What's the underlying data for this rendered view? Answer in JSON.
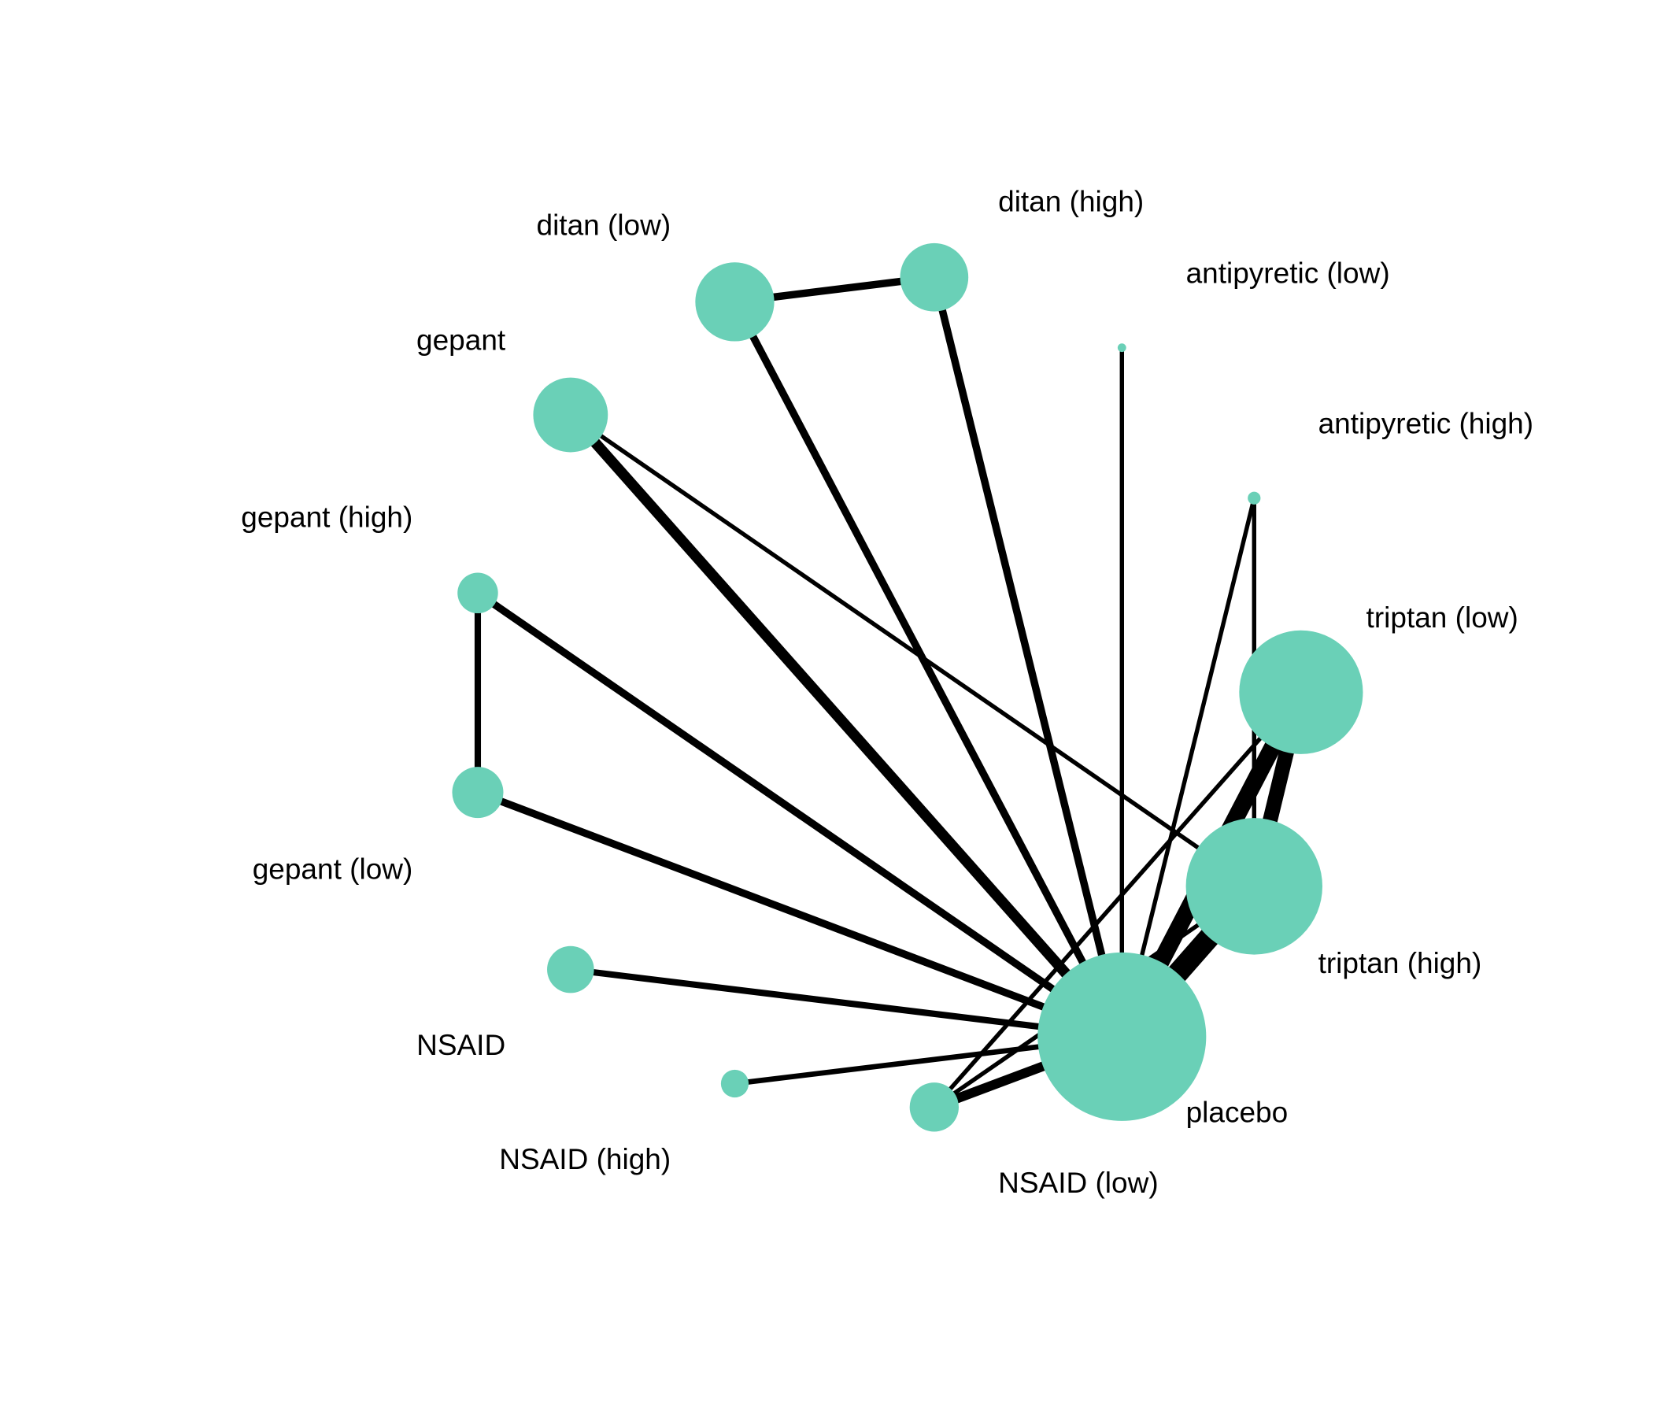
{
  "node_color": "#6ad0b7",
  "edge_color": "#000000",
  "nodes": [
    {
      "id": "placebo",
      "label": "placebo"
    },
    {
      "id": "triptan_high",
      "label": "triptan (high)"
    },
    {
      "id": "triptan_low",
      "label": "triptan (low)"
    },
    {
      "id": "antipyretic_high",
      "label": "antipyretic (high)"
    },
    {
      "id": "antipyretic_low",
      "label": "antipyretic (low)"
    },
    {
      "id": "ditan_high",
      "label": "ditan (high)"
    },
    {
      "id": "ditan_low",
      "label": "ditan (low)"
    },
    {
      "id": "gepant",
      "label": "gepant"
    },
    {
      "id": "gepant_high",
      "label": "gepant (high)"
    },
    {
      "id": "gepant_low",
      "label": "gepant (low)"
    },
    {
      "id": "nsaid",
      "label": "NSAID"
    },
    {
      "id": "nsaid_high",
      "label": "NSAID (high)"
    },
    {
      "id": "nsaid_low",
      "label": "NSAID (low)"
    }
  ],
  "edges": [
    {
      "from": "placebo",
      "to": "triptan_high"
    },
    {
      "from": "placebo",
      "to": "triptan_low"
    },
    {
      "from": "triptan_high",
      "to": "triptan_low"
    },
    {
      "from": "placebo",
      "to": "antipyretic_low"
    },
    {
      "from": "placebo",
      "to": "antipyretic_high"
    },
    {
      "from": "antipyretic_high",
      "to": "triptan_high"
    },
    {
      "from": "placebo",
      "to": "ditan_high"
    },
    {
      "from": "placebo",
      "to": "ditan_low"
    },
    {
      "from": "ditan_low",
      "to": "ditan_high"
    },
    {
      "from": "placebo",
      "to": "gepant"
    },
    {
      "from": "gepant",
      "to": "triptan_high"
    },
    {
      "from": "placebo",
      "to": "gepant_high"
    },
    {
      "from": "placebo",
      "to": "gepant_low"
    },
    {
      "from": "gepant_high",
      "to": "gepant_low"
    },
    {
      "from": "placebo",
      "to": "nsaid"
    },
    {
      "from": "placebo",
      "to": "nsaid_high"
    },
    {
      "from": "placebo",
      "to": "nsaid_low"
    },
    {
      "from": "nsaid_low",
      "to": "triptan_low"
    },
    {
      "from": "nsaid_low",
      "to": "triptan_high"
    }
  ]
}
